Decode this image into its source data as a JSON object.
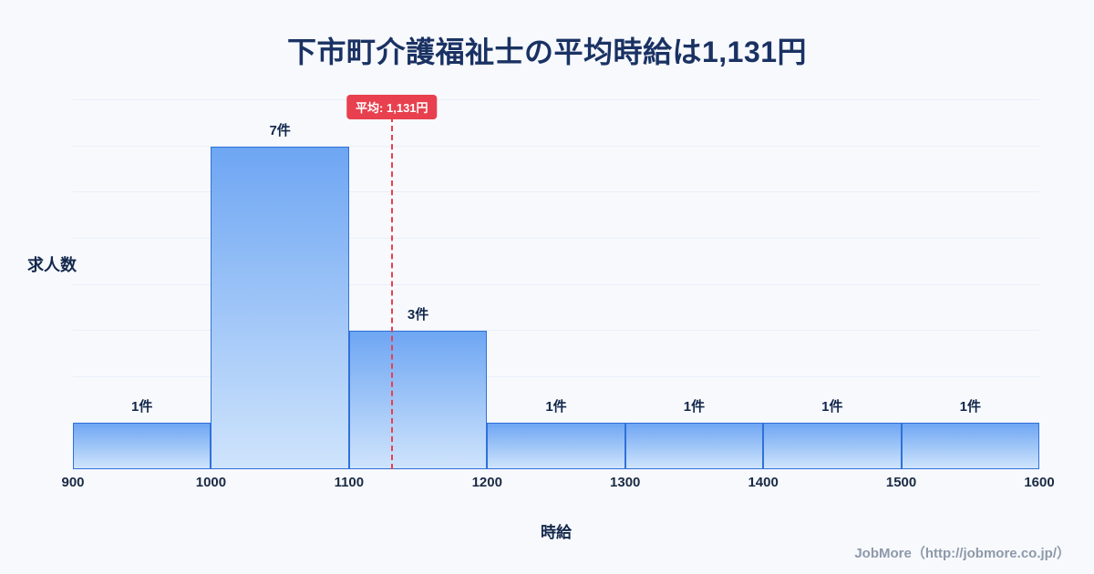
{
  "page": {
    "footer_credit": "JobMore（http://jobmore.co.jp/）"
  },
  "chart_data": {
    "type": "bar",
    "title": "下市町介護福祉士の平均時給は1,131円",
    "xlabel": "時給",
    "ylabel": "求人数",
    "x_range": [
      900,
      1600
    ],
    "x_ticks": [
      900,
      1000,
      1100,
      1200,
      1300,
      1400,
      1500,
      1600
    ],
    "bins": [
      {
        "from": 900,
        "to": 1000,
        "count": 1,
        "label": "1件"
      },
      {
        "from": 1000,
        "to": 1100,
        "count": 7,
        "label": "7件"
      },
      {
        "from": 1100,
        "to": 1200,
        "count": 3,
        "label": "3件"
      },
      {
        "from": 1200,
        "to": 1300,
        "count": 1,
        "label": "1件"
      },
      {
        "from": 1300,
        "to": 1400,
        "count": 1,
        "label": "1件"
      },
      {
        "from": 1400,
        "to": 1500,
        "count": 1,
        "label": "1件"
      },
      {
        "from": 1500,
        "to": 1600,
        "count": 1,
        "label": "1件"
      }
    ],
    "ylim": [
      0,
      8.2
    ],
    "grid": "horizontal-faint",
    "legend": "none",
    "average_line": {
      "value": 1131,
      "label": "平均: 1,131円",
      "color": "#e8404e"
    },
    "colors": {
      "bar_top": "#6ea6f3",
      "bar_bottom": "#cfe4fc",
      "bar_border": "#3071d9",
      "title": "#1a3263",
      "background": "#f7f9fd",
      "footer": "#8e99a8"
    }
  }
}
